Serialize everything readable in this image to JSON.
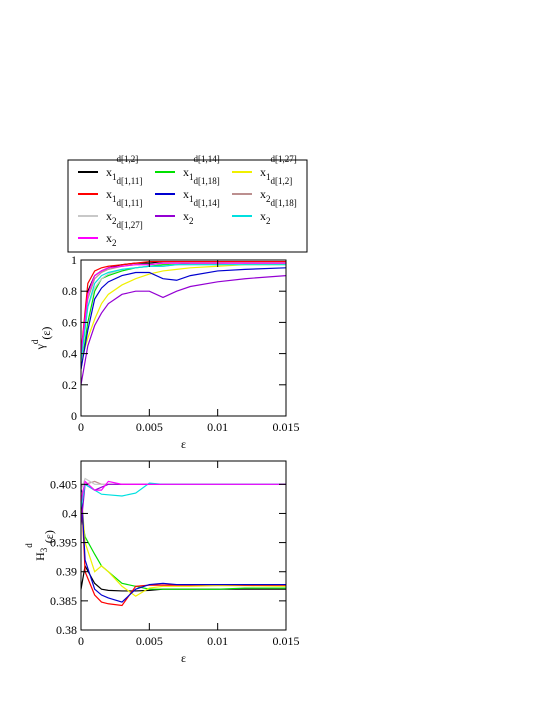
{
  "legend": [
    {
      "name": "x",
      "sub": "1",
      "sup": "d[1,2]",
      "color": "#000000"
    },
    {
      "name": "x",
      "sub": "1",
      "sup": "d[1,14]",
      "color": "#00e000"
    },
    {
      "name": "x",
      "sub": "1",
      "sup": "d[1,27]",
      "color": "#f0f000"
    },
    {
      "name": "x",
      "sub": "1",
      "sup": "d[1,11]",
      "color": "#ff0000"
    },
    {
      "name": "x",
      "sub": "1",
      "sup": "d[1,18]",
      "color": "#0000d0"
    },
    {
      "name": "x",
      "sub": "2",
      "sup": "d[1,2]",
      "color": "#bc8f8f"
    },
    {
      "name": "x",
      "sub": "2",
      "sup": "d[1,11]",
      "color": "#c8c8c8"
    },
    {
      "name": "x",
      "sub": "2",
      "sup": "d[1,14]",
      "color": "#9400d3"
    },
    {
      "name": "x",
      "sub": "2",
      "sup": "d[1,18]",
      "color": "#00e0e0"
    },
    {
      "name": "x",
      "sub": "2",
      "sup": "d[1,27]",
      "color": "#ff00ff"
    }
  ],
  "chart_data": [
    {
      "type": "line",
      "xlabel": "ε",
      "ylabel": {
        "base": "γ",
        "sup": "d",
        "tail": "(ε)"
      },
      "x": [
        0,
        0.0005,
        0.001,
        0.0015,
        0.002,
        0.003,
        0.004,
        0.005,
        0.006,
        0.007,
        0.008,
        0.01,
        0.012,
        0.015
      ],
      "xlim": [
        0,
        0.015
      ],
      "xticks": [
        0,
        0.005,
        0.01,
        0.015
      ],
      "ylim": [
        0,
        1
      ],
      "yticks": [
        0,
        0.2,
        0.4,
        0.6,
        0.8,
        1
      ],
      "series": [
        {
          "values": [
            0.35,
            0.8,
            0.9,
            0.93,
            0.95,
            0.97,
            0.98,
            0.98,
            0.99,
            0.99,
            0.99,
            0.99,
            0.99,
            0.99
          ]
        },
        {
          "values": [
            0.3,
            0.6,
            0.8,
            0.88,
            0.9,
            0.93,
            0.95,
            0.96,
            0.97,
            0.97,
            0.98,
            0.98,
            0.98,
            0.98
          ]
        },
        {
          "values": [
            0.35,
            0.5,
            0.62,
            0.72,
            0.78,
            0.84,
            0.88,
            0.91,
            0.93,
            0.94,
            0.95,
            0.96,
            0.97,
            0.97
          ]
        },
        {
          "values": [
            0.4,
            0.85,
            0.93,
            0.95,
            0.96,
            0.97,
            0.98,
            0.99,
            0.99,
            0.99,
            0.99,
            0.99,
            0.99,
            0.99
          ]
        },
        {
          "values": [
            0.3,
            0.55,
            0.75,
            0.82,
            0.86,
            0.9,
            0.92,
            0.92,
            0.88,
            0.87,
            0.9,
            0.93,
            0.94,
            0.95
          ]
        },
        {
          "values": [
            0.4,
            0.75,
            0.88,
            0.92,
            0.94,
            0.96,
            0.97,
            0.97,
            0.98,
            0.98,
            0.98,
            0.98,
            0.98,
            0.98
          ]
        },
        {
          "values": [
            0.35,
            0.7,
            0.82,
            0.88,
            0.91,
            0.94,
            0.95,
            0.96,
            0.96,
            0.97,
            0.97,
            0.97,
            0.98,
            0.98
          ]
        },
        {
          "values": [
            0.2,
            0.45,
            0.58,
            0.66,
            0.72,
            0.78,
            0.8,
            0.8,
            0.76,
            0.8,
            0.83,
            0.86,
            0.88,
            0.9
          ]
        },
        {
          "values": [
            0.35,
            0.7,
            0.85,
            0.9,
            0.92,
            0.94,
            0.95,
            0.96,
            0.96,
            0.97,
            0.97,
            0.97,
            0.97,
            0.97
          ]
        },
        {
          "values": [
            0.4,
            0.78,
            0.9,
            0.93,
            0.95,
            0.96,
            0.97,
            0.97,
            0.98,
            0.98,
            0.98,
            0.98,
            0.98,
            0.98
          ]
        }
      ]
    },
    {
      "type": "line",
      "xlabel": "ε",
      "ylabel": {
        "base": "H",
        "sub": "3",
        "sup": "d",
        "tail": "(ε)"
      },
      "x": [
        0,
        0.0003,
        0.001,
        0.0015,
        0.002,
        0.003,
        0.004,
        0.005,
        0.006,
        0.007,
        0.008,
        0.01,
        0.012,
        0.015
      ],
      "xlim": [
        0,
        0.015
      ],
      "xticks": [
        0,
        0.005,
        0.01,
        0.015
      ],
      "ylim": [
        0.38,
        0.409
      ],
      "yticks": [
        0.38,
        0.385,
        0.39,
        0.395,
        0.4,
        0.405
      ],
      "series": [
        {
          "values": [
            0.387,
            0.391,
            0.388,
            0.387,
            0.3868,
            0.3867,
            0.3867,
            0.3868,
            0.387,
            0.387,
            0.387,
            0.387,
            0.387,
            0.387
          ]
        },
        {
          "values": [
            0.4,
            0.396,
            0.393,
            0.391,
            0.39,
            0.388,
            0.3875,
            0.387,
            0.387,
            0.387,
            0.387,
            0.387,
            0.3872,
            0.3872
          ]
        },
        {
          "values": [
            0.404,
            0.395,
            0.39,
            0.391,
            0.39,
            0.3875,
            0.3858,
            0.3872,
            0.3875,
            0.3875,
            0.3875,
            0.3876,
            0.3876,
            0.3875
          ]
        },
        {
          "values": [
            0.405,
            0.39,
            0.386,
            0.3848,
            0.3845,
            0.3842,
            0.3875,
            0.3877,
            0.3877,
            0.3877,
            0.3877,
            0.3878,
            0.3877,
            0.3877
          ]
        },
        {
          "values": [
            0.405,
            0.392,
            0.387,
            0.386,
            0.3855,
            0.3848,
            0.387,
            0.3878,
            0.388,
            0.3878,
            0.3878,
            0.3878,
            0.3878,
            0.3878
          ]
        },
        {
          "values": [
            0.403,
            0.405,
            0.4055,
            0.405,
            0.405,
            0.405,
            0.405,
            0.405,
            0.405,
            0.405,
            0.405,
            0.405,
            0.405,
            0.405
          ]
        },
        {
          "values": [
            0.404,
            0.406,
            0.405,
            0.405,
            0.405,
            0.405,
            0.405,
            0.405,
            0.405,
            0.405,
            0.405,
            0.405,
            0.405,
            0.405
          ]
        },
        {
          "values": [
            0.398,
            0.405,
            0.404,
            0.4045,
            0.405,
            0.405,
            0.405,
            0.405,
            0.405,
            0.405,
            0.405,
            0.405,
            0.405,
            0.405
          ]
        },
        {
          "values": [
            0.401,
            0.405,
            0.404,
            0.4033,
            0.4032,
            0.403,
            0.4035,
            0.4052,
            0.405,
            0.405,
            0.405,
            0.405,
            0.405,
            0.405
          ]
        },
        {
          "values": [
            0.402,
            0.4055,
            0.404,
            0.404,
            0.4055,
            0.405,
            0.405,
            0.405,
            0.405,
            0.405,
            0.405,
            0.405,
            0.405,
            0.405
          ]
        }
      ]
    }
  ]
}
